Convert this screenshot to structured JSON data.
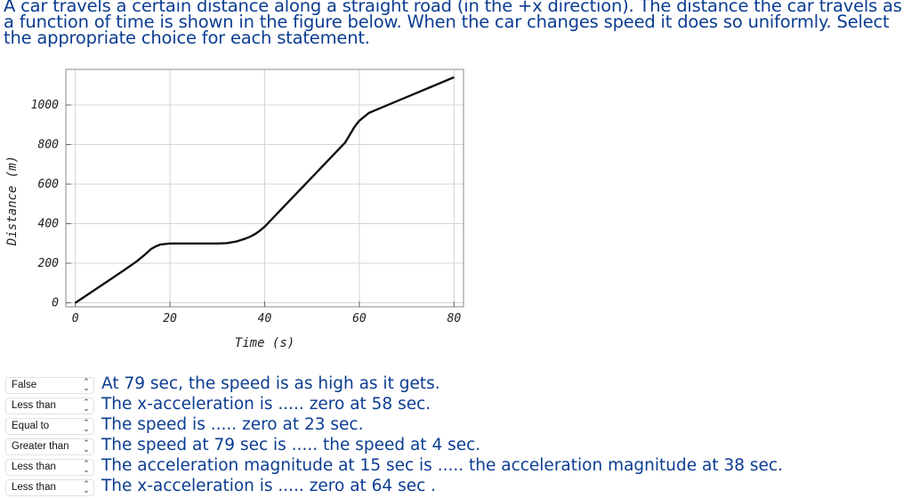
{
  "intro": "A car travels a certain distance along a straight road (in the +x direction). The distance the car travels as a function of time is shown in the figure below. When the car changes speed it does so uniformly. Select the appropriate choice for each statement.",
  "chart_data": {
    "type": "line",
    "xlabel": "Time (s)",
    "ylabel": "Distance (m)",
    "xlim": [
      -2,
      82
    ],
    "ylim": [
      -20,
      1180
    ],
    "xticks": [
      0,
      20,
      40,
      60,
      80
    ],
    "yticks": [
      0,
      200,
      400,
      600,
      800,
      1000
    ],
    "grid": true,
    "series": [
      {
        "x": [
          0,
          5,
          10,
          13,
          15,
          16,
          17,
          18,
          20,
          25,
          30,
          32,
          34,
          36,
          37,
          38,
          39,
          40,
          42,
          45,
          50,
          55,
          57,
          58,
          59,
          60,
          62,
          65,
          70,
          75,
          80
        ],
        "y": [
          0,
          80,
          160,
          210,
          250,
          272,
          285,
          295,
          300,
          300,
          300,
          302,
          310,
          325,
          335,
          348,
          365,
          385,
          435,
          510,
          635,
          760,
          810,
          850,
          890,
          920,
          960,
          990,
          1040,
          1090,
          1140
        ]
      }
    ]
  },
  "questions": [
    {
      "selected": "False",
      "statement": "At 79 sec, the speed is as high as it gets."
    },
    {
      "selected": "Less than",
      "statement": "The x-acceleration is ..... zero at 58 sec."
    },
    {
      "selected": "Equal to",
      "statement": "The speed is ..... zero at 23 sec."
    },
    {
      "selected": "Greater than",
      "statement": "The speed at 79 sec is ..... the speed at 4 sec."
    },
    {
      "selected": "Less than",
      "statement": "The acceleration magnitude at 15 sec is ..... the acceleration magnitude at 38 sec."
    },
    {
      "selected": "Less than",
      "statement": "The x-acceleration is ..... zero at 64 sec ."
    }
  ],
  "icons": {
    "select_arrows": "up-down-chevron-icon"
  },
  "colors": {
    "statement_text": "#0b3d91",
    "curve": "#111111",
    "grid": "#d4d4d4"
  }
}
